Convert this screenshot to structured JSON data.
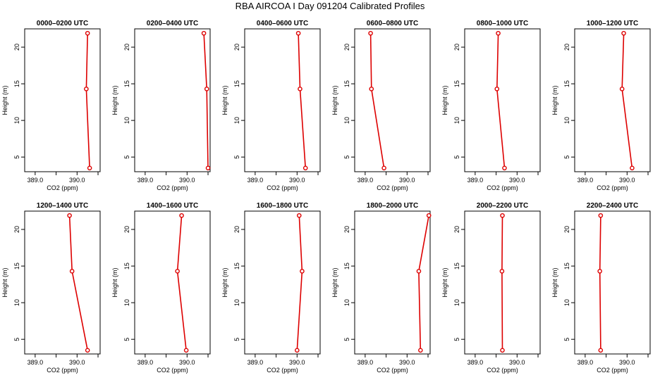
{
  "title": "RBA AIRCOA I  Day 091204  Calibrated Profiles",
  "colors": {
    "series": "#dd0000",
    "axis": "#000000",
    "background": "#ffffff"
  },
  "chart_data": [
    {
      "type": "line",
      "title": "0000–0200 UTC",
      "xlabel": "CO2 (ppm)",
      "ylabel": "Height (m)",
      "xlim": [
        388.75,
        390.55
      ],
      "ylim": [
        3,
        22.5
      ],
      "xticks": [
        389.0,
        389.5,
        390.0,
        390.5
      ],
      "xtick_labels": [
        "389.0",
        "",
        "390.0",
        ""
      ],
      "yticks": [
        5,
        10,
        15,
        20
      ],
      "ytick_labels": [
        "5",
        "10",
        "15",
        "20"
      ],
      "series": [
        {
          "x": [
            390.3,
            390.22,
            390.25
          ],
          "y": [
            3.5,
            14.3,
            21.9
          ]
        }
      ]
    },
    {
      "type": "line",
      "title": "0200–0400 UTC",
      "xlabel": "CO2 (ppm)",
      "ylabel": "Height (m)",
      "xlim": [
        388.75,
        390.55
      ],
      "ylim": [
        3,
        22.5
      ],
      "xticks": [
        389.0,
        389.5,
        390.0,
        390.5
      ],
      "xtick_labels": [
        "389.0",
        "",
        "390.0",
        ""
      ],
      "yticks": [
        5,
        10,
        15,
        20
      ],
      "ytick_labels": [
        "5",
        "10",
        "15",
        "20"
      ],
      "series": [
        {
          "x": [
            390.5,
            390.47,
            390.4
          ],
          "y": [
            3.5,
            14.3,
            21.9
          ]
        }
      ]
    },
    {
      "type": "line",
      "title": "0400–0600 UTC",
      "xlabel": "CO2 (ppm)",
      "ylabel": "Height (m)",
      "xlim": [
        388.75,
        390.55
      ],
      "ylim": [
        3,
        22.5
      ],
      "xticks": [
        389.0,
        389.5,
        390.0,
        390.5
      ],
      "xtick_labels": [
        "389.0",
        "",
        "390.0",
        ""
      ],
      "yticks": [
        5,
        10,
        15,
        20
      ],
      "ytick_labels": [
        "5",
        "10",
        "15",
        "20"
      ],
      "series": [
        {
          "x": [
            390.2,
            390.07,
            390.03
          ],
          "y": [
            3.5,
            14.3,
            21.9
          ]
        }
      ]
    },
    {
      "type": "line",
      "title": "0600–0800 UTC",
      "xlabel": "CO2 (ppm)",
      "ylabel": "Height (m)",
      "xlim": [
        388.75,
        390.55
      ],
      "ylim": [
        3,
        22.5
      ],
      "xticks": [
        389.0,
        389.5,
        390.0,
        390.5
      ],
      "xtick_labels": [
        "389.0",
        "",
        "390.0",
        ""
      ],
      "yticks": [
        5,
        10,
        15,
        20
      ],
      "ytick_labels": [
        "5",
        "10",
        "15",
        "20"
      ],
      "series": [
        {
          "x": [
            389.45,
            389.15,
            389.13
          ],
          "y": [
            3.5,
            14.3,
            21.9
          ]
        }
      ]
    },
    {
      "type": "line",
      "title": "0800–1000 UTC",
      "xlabel": "CO2 (ppm)",
      "ylabel": "Height (m)",
      "xlim": [
        388.75,
        390.55
      ],
      "ylim": [
        3,
        22.5
      ],
      "xticks": [
        389.0,
        389.5,
        390.0,
        390.5
      ],
      "xtick_labels": [
        "389.0",
        "",
        "390.0",
        ""
      ],
      "yticks": [
        5,
        10,
        15,
        20
      ],
      "ytick_labels": [
        "5",
        "10",
        "15",
        "20"
      ],
      "series": [
        {
          "x": [
            389.7,
            389.52,
            389.55
          ],
          "y": [
            3.5,
            14.3,
            21.9
          ]
        }
      ]
    },
    {
      "type": "line",
      "title": "1000–1200 UTC",
      "xlabel": "CO2 (ppm)",
      "ylabel": "Height (m)",
      "xlim": [
        388.75,
        390.55
      ],
      "ylim": [
        3,
        22.5
      ],
      "xticks": [
        389.0,
        389.5,
        390.0,
        390.5
      ],
      "xtick_labels": [
        "389.0",
        "",
        "390.0",
        ""
      ],
      "yticks": [
        5,
        10,
        15,
        20
      ],
      "ytick_labels": [
        "5",
        "10",
        "15",
        "20"
      ],
      "series": [
        {
          "x": [
            390.12,
            389.88,
            389.92
          ],
          "y": [
            3.5,
            14.3,
            21.9
          ]
        }
      ]
    },
    {
      "type": "line",
      "title": "1200–1400 UTC",
      "xlabel": "CO2 (ppm)",
      "ylabel": "Height (m)",
      "xlim": [
        388.75,
        390.55
      ],
      "ylim": [
        3,
        22.5
      ],
      "xticks": [
        389.0,
        389.5,
        390.0,
        390.5
      ],
      "xtick_labels": [
        "389.0",
        "",
        "390.0",
        ""
      ],
      "yticks": [
        5,
        10,
        15,
        20
      ],
      "ytick_labels": [
        "5",
        "10",
        "15",
        "20"
      ],
      "series": [
        {
          "x": [
            390.25,
            389.88,
            389.82
          ],
          "y": [
            3.5,
            14.3,
            21.9
          ]
        }
      ]
    },
    {
      "type": "line",
      "title": "1400–1600 UTC",
      "xlabel": "CO2 (ppm)",
      "ylabel": "Height (m)",
      "xlim": [
        388.75,
        390.55
      ],
      "ylim": [
        3,
        22.5
      ],
      "xticks": [
        389.0,
        389.5,
        390.0,
        390.5
      ],
      "xtick_labels": [
        "389.0",
        "",
        "390.0",
        ""
      ],
      "yticks": [
        5,
        10,
        15,
        20
      ],
      "ytick_labels": [
        "5",
        "10",
        "15",
        "20"
      ],
      "series": [
        {
          "x": [
            389.98,
            389.77,
            389.87
          ],
          "y": [
            3.5,
            14.3,
            21.9
          ]
        }
      ]
    },
    {
      "type": "line",
      "title": "1600–1800 UTC",
      "xlabel": "CO2 (ppm)",
      "ylabel": "Height (m)",
      "xlim": [
        388.75,
        390.55
      ],
      "ylim": [
        3,
        22.5
      ],
      "xticks": [
        389.0,
        389.5,
        390.0,
        390.5
      ],
      "xtick_labels": [
        "389.0",
        "",
        "390.0",
        ""
      ],
      "yticks": [
        5,
        10,
        15,
        20
      ],
      "ytick_labels": [
        "5",
        "10",
        "15",
        "20"
      ],
      "series": [
        {
          "x": [
            390.0,
            390.12,
            390.05
          ],
          "y": [
            3.5,
            14.3,
            21.9
          ]
        }
      ]
    },
    {
      "type": "line",
      "title": "1800–2000 UTC",
      "xlabel": "CO2 (ppm)",
      "ylabel": "Height (m)",
      "xlim": [
        388.75,
        390.55
      ],
      "ylim": [
        3,
        22.5
      ],
      "xticks": [
        389.0,
        389.5,
        390.0,
        390.5
      ],
      "xtick_labels": [
        "389.0",
        "",
        "390.0",
        ""
      ],
      "yticks": [
        5,
        10,
        15,
        20
      ],
      "ytick_labels": [
        "5",
        "10",
        "15",
        "20"
      ],
      "series": [
        {
          "x": [
            390.32,
            390.28,
            390.52
          ],
          "y": [
            3.5,
            14.3,
            21.9
          ]
        }
      ]
    },
    {
      "type": "line",
      "title": "2000–2200 UTC",
      "xlabel": "CO2 (ppm)",
      "ylabel": "Height (m)",
      "xlim": [
        388.75,
        390.55
      ],
      "ylim": [
        3,
        22.5
      ],
      "xticks": [
        389.0,
        389.5,
        390.0,
        390.5
      ],
      "xtick_labels": [
        "389.0",
        "",
        "390.0",
        ""
      ],
      "yticks": [
        5,
        10,
        15,
        20
      ],
      "ytick_labels": [
        "5",
        "10",
        "15",
        "20"
      ],
      "series": [
        {
          "x": [
            389.65,
            389.64,
            389.65
          ],
          "y": [
            3.5,
            14.3,
            21.9
          ]
        }
      ]
    },
    {
      "type": "line",
      "title": "2200–2400 UTC",
      "xlabel": "CO2 (ppm)",
      "ylabel": "Height (m)",
      "xlim": [
        388.75,
        390.55
      ],
      "ylim": [
        3,
        22.5
      ],
      "xticks": [
        389.0,
        389.5,
        390.0,
        390.5
      ],
      "xtick_labels": [
        "389.0",
        "",
        "390.0",
        ""
      ],
      "yticks": [
        5,
        10,
        15,
        20
      ],
      "ytick_labels": [
        "5",
        "10",
        "15",
        "20"
      ],
      "series": [
        {
          "x": [
            389.37,
            389.35,
            389.37
          ],
          "y": [
            3.5,
            14.3,
            21.9
          ]
        }
      ]
    }
  ]
}
